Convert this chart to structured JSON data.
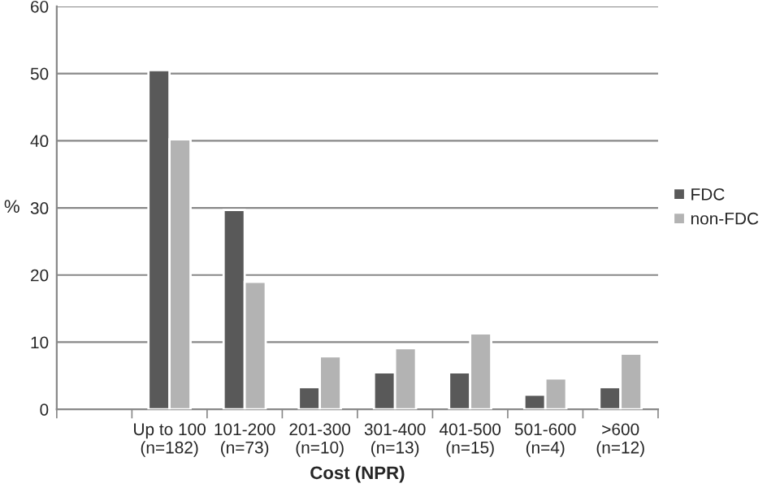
{
  "chart_data": {
    "type": "bar",
    "xlabel": "Cost (NPR)",
    "ylabel": "%",
    "categories": [
      null,
      "Up to 100\n(n=182)",
      "101-200\n(n=73)",
      "201-300\n(n=10)",
      "301-400\n(n=13)",
      "401-500\n(n=15)",
      "501-600\n(n=4)",
      ">600\n(n=12)"
    ],
    "series": [
      {
        "name": "FDC",
        "color": "#595959",
        "values": [
          null,
          50.5,
          29.7,
          3.3,
          5.5,
          5.5,
          2.2,
          3.3
        ]
      },
      {
        "name": "non-FDC",
        "color": "#b3b3b3",
        "values": [
          null,
          40.2,
          19.0,
          7.9,
          9.1,
          11.3,
          4.6,
          8.3
        ]
      }
    ],
    "ylim": [
      0,
      60
    ],
    "yticks": [
      0,
      10,
      20,
      30,
      40,
      50,
      60
    ],
    "grid": "y",
    "legend": "right"
  }
}
